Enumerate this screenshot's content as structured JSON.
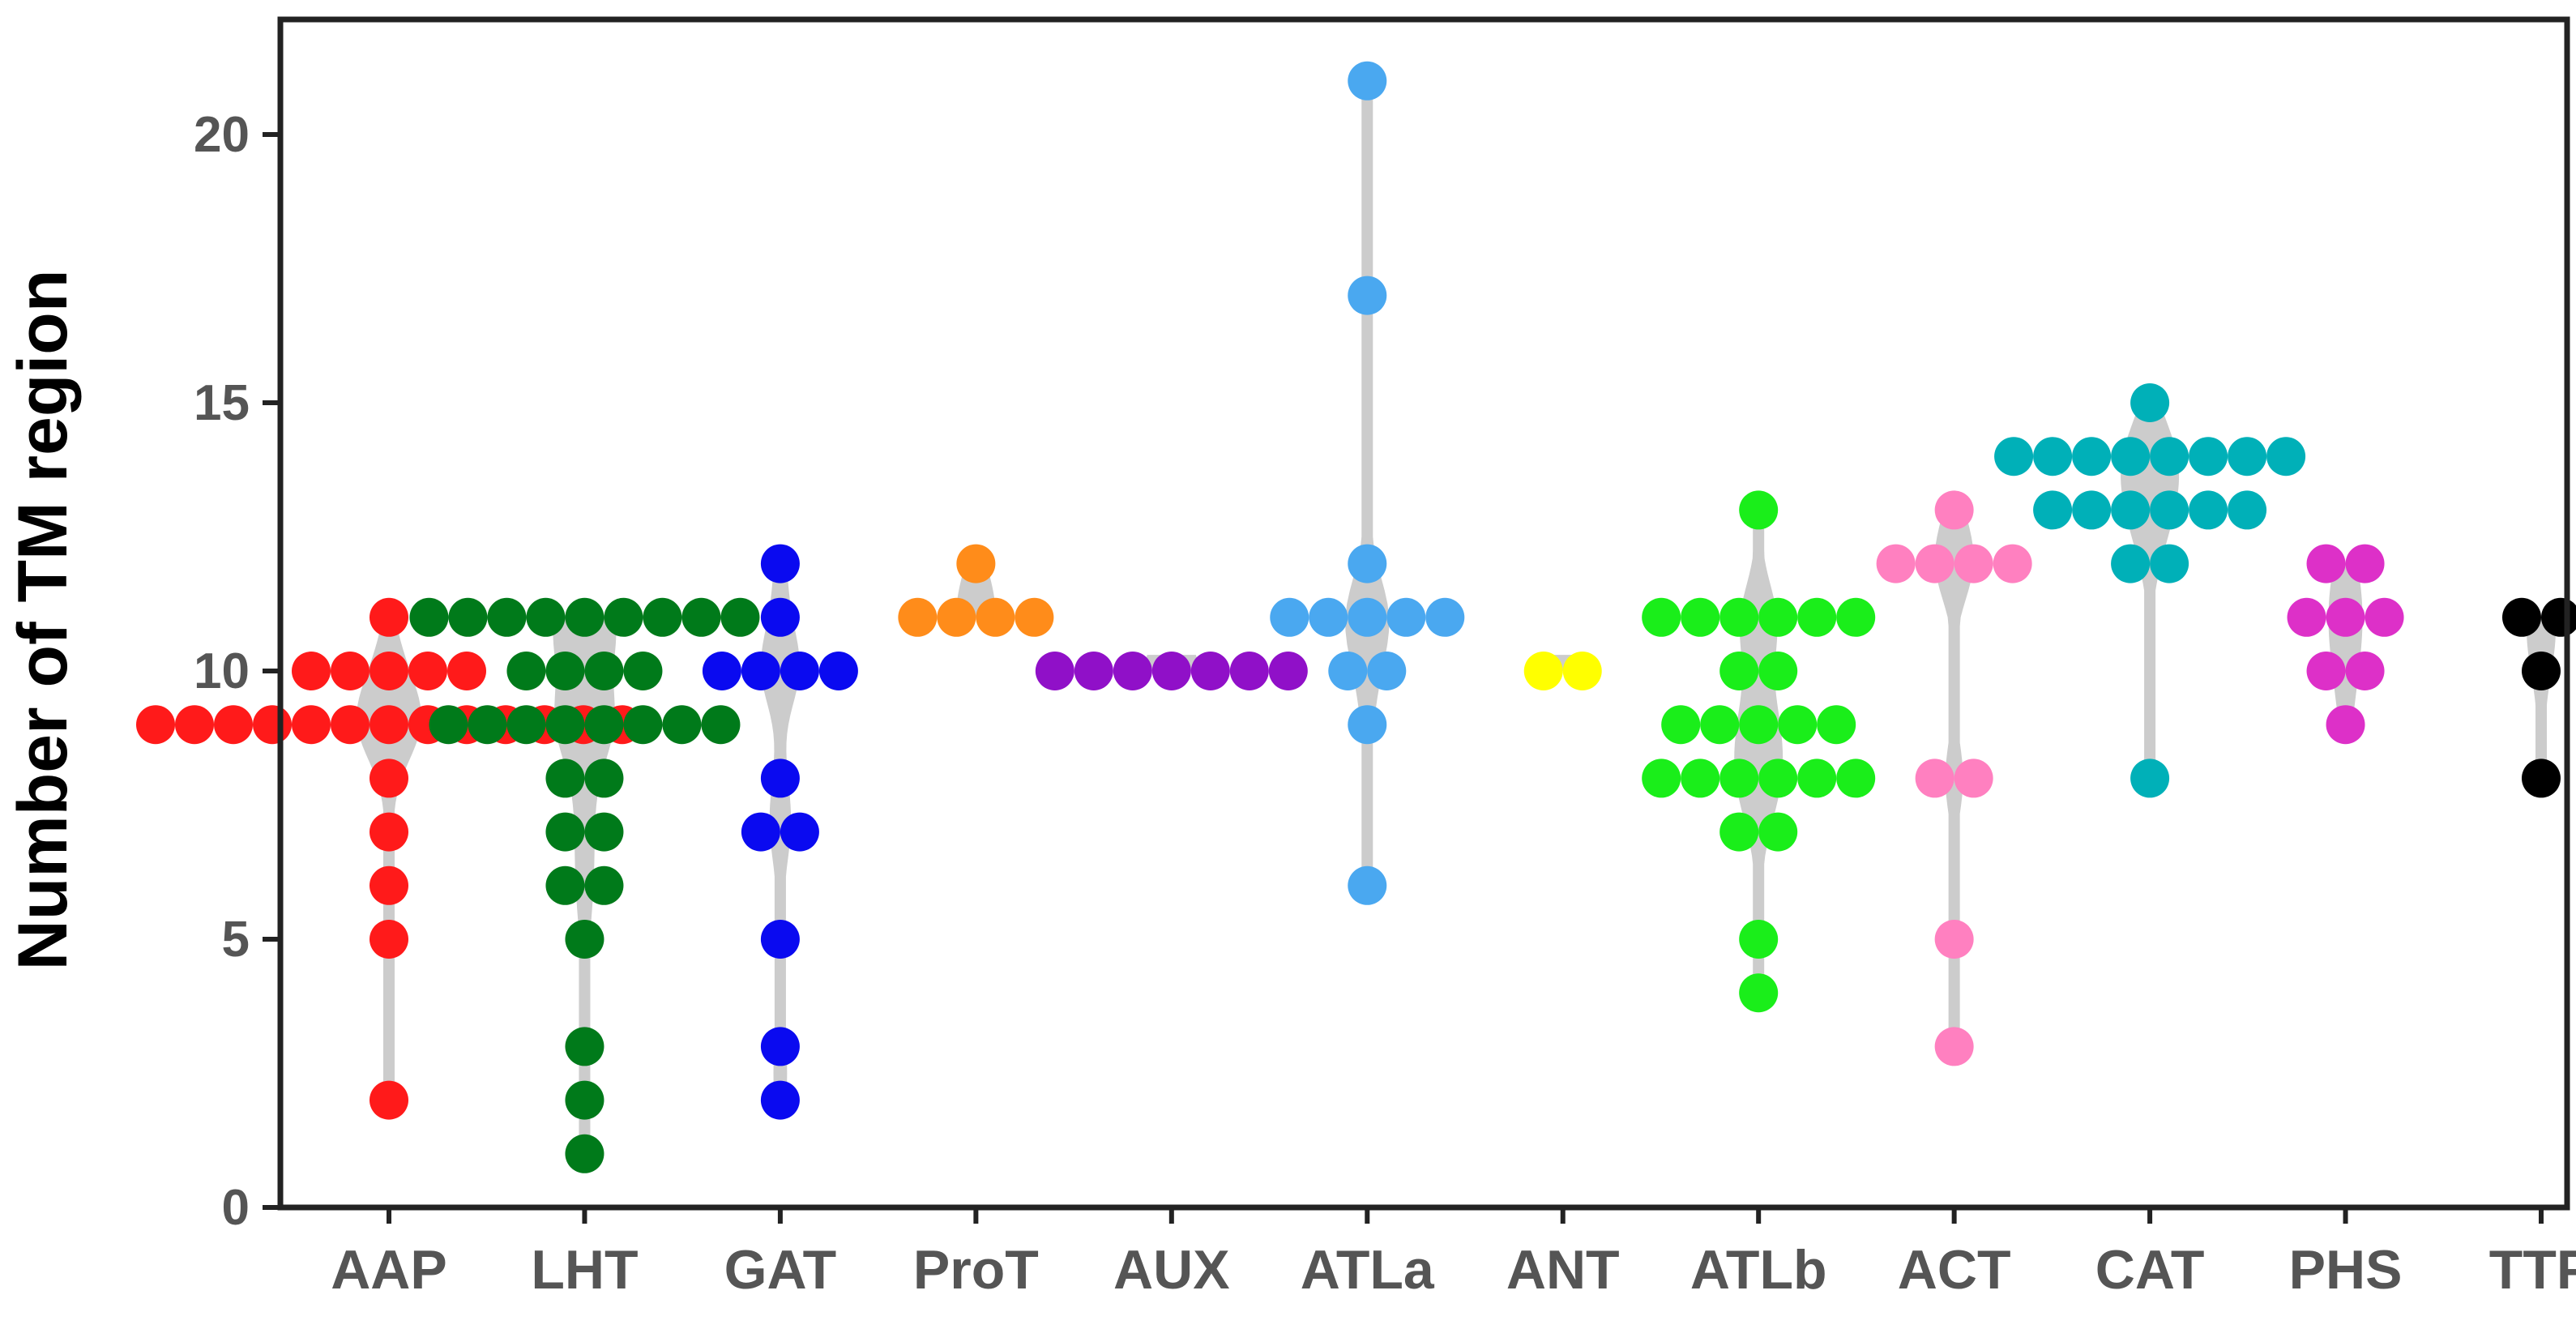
{
  "chart_data": {
    "type": "scatter",
    "subtype": "beeswarm-violin",
    "title": "",
    "xlabel": "",
    "ylabel": "Number of TM region",
    "ylim": [
      0,
      22
    ],
    "yticks": [
      0,
      5,
      10,
      15,
      20
    ],
    "grid": false,
    "violin_color": "#cccccc",
    "frame_color": "#222222",
    "series": [
      {
        "name": "AAP",
        "color": "#ff1a1a",
        "values": [
          11,
          10,
          10,
          10,
          10,
          10,
          9,
          9,
          9,
          9,
          9,
          9,
          9,
          9,
          9,
          9,
          9,
          9,
          9,
          8,
          7,
          6,
          5,
          2
        ]
      },
      {
        "name": "LHT",
        "color": "#007a1a",
        "values": [
          11,
          11,
          11,
          11,
          11,
          11,
          11,
          11,
          11,
          10,
          10,
          10,
          10,
          9,
          9,
          9,
          9,
          9,
          9,
          9,
          9,
          8,
          8,
          7,
          7,
          6,
          6,
          5,
          3,
          2,
          1
        ]
      },
      {
        "name": "GAT",
        "color": "#0a0af0",
        "values": [
          12,
          11,
          10,
          10,
          10,
          10,
          8,
          7,
          7,
          5,
          3,
          2
        ]
      },
      {
        "name": "ProT",
        "color": "#ff8c1a",
        "values": [
          12,
          11,
          11,
          11,
          11
        ]
      },
      {
        "name": "AUX",
        "color": "#9010c8",
        "values": [
          10,
          10,
          10,
          10,
          10,
          10,
          10
        ]
      },
      {
        "name": "ATLa",
        "color": "#4aa8f0",
        "values": [
          21,
          17,
          12,
          11,
          11,
          11,
          11,
          11,
          10,
          10,
          9,
          6
        ]
      },
      {
        "name": "ANT",
        "color": "#ffff00",
        "values": [
          10,
          10
        ]
      },
      {
        "name": "ATLb",
        "color": "#1aee1a",
        "values": [
          13,
          11,
          11,
          11,
          11,
          11,
          11,
          10,
          10,
          9,
          9,
          9,
          9,
          9,
          8,
          8,
          8,
          8,
          8,
          8,
          7,
          7,
          5,
          4
        ]
      },
      {
        "name": "ACT",
        "color": "#ff80c0",
        "values": [
          13,
          12,
          12,
          12,
          12,
          8,
          8,
          5,
          3
        ]
      },
      {
        "name": "CAT",
        "color": "#00b0b8",
        "values": [
          15,
          14,
          14,
          14,
          14,
          14,
          14,
          14,
          14,
          13,
          13,
          13,
          13,
          13,
          13,
          12,
          12,
          8
        ]
      },
      {
        "name": "PHS",
        "color": "#dd30c8",
        "values": [
          12,
          12,
          11,
          11,
          11,
          10,
          10,
          9
        ]
      },
      {
        "name": "TTP",
        "color": "#000000",
        "values": [
          11,
          11,
          10,
          8
        ]
      }
    ]
  }
}
